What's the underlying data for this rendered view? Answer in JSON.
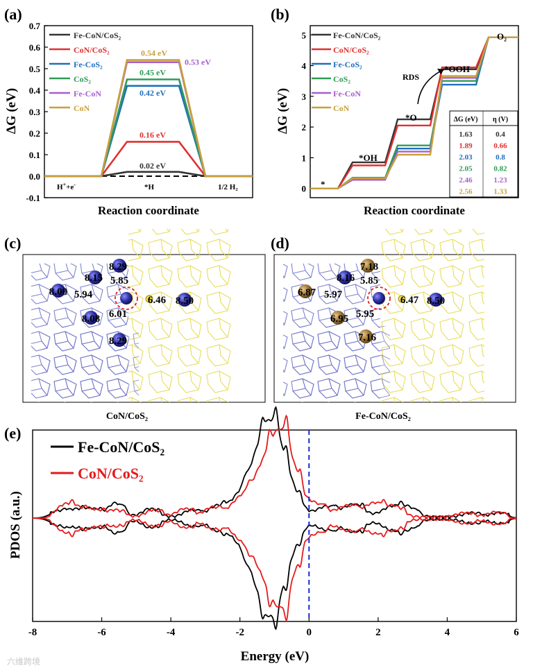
{
  "chart_data": [
    {
      "panel": "(a)",
      "type": "line",
      "title": "",
      "ylabel": "ΔG (eV)",
      "xlabel": "Reaction coordinate",
      "ylim": [
        -0.1,
        0.7
      ],
      "yticks": [
        "-0.1",
        "0.0",
        "0.1",
        "0.2",
        "0.3",
        "0.4",
        "0.5",
        "0.6",
        "0.7"
      ],
      "states": [
        "H⁺+e⁻",
        "*H",
        "1/2 H₂"
      ],
      "legend": [
        "Fe-CoN/CoS₂",
        "CoN/CoS₂",
        "Fe-CoS₂",
        "CoS₂",
        "Fe-CoN",
        "CoN"
      ],
      "series": [
        {
          "name": "Fe-CoN/CoS₂",
          "color": "#333333",
          "values": [
            0,
            0.02,
            0
          ],
          "label": "0.02 eV"
        },
        {
          "name": "CoN/CoS₂",
          "color": "#e03030",
          "values": [
            0,
            0.16,
            0
          ],
          "label": "0.16 eV"
        },
        {
          "name": "Fe-CoS₂",
          "color": "#1f6fbf",
          "values": [
            0,
            0.42,
            0
          ],
          "label": "0.42 eV"
        },
        {
          "name": "CoS₂",
          "color": "#2e9b57",
          "values": [
            0,
            0.45,
            0
          ],
          "label": "0.45 eV"
        },
        {
          "name": "Fe-CoN",
          "color": "#a65fd0",
          "values": [
            0,
            0.53,
            0
          ],
          "label": "0.53 eV"
        },
        {
          "name": "CoN",
          "color": "#c9a03a",
          "values": [
            0,
            0.54,
            0
          ],
          "label": "0.54 eV"
        }
      ]
    },
    {
      "panel": "(b)",
      "type": "line",
      "ylabel": "ΔG (eV)",
      "xlabel": "Reaction coordinate",
      "ylim": [
        -0.3,
        5.3
      ],
      "yticks": [
        "0",
        "1",
        "2",
        "3",
        "4",
        "5"
      ],
      "states": [
        "*",
        "*OH",
        "*O",
        "*OOH",
        "O₂"
      ],
      "rds_label": "RDS",
      "legend": [
        "Fe-CoN/CoS₂",
        "CoN/CoS₂",
        "Fe-CoS₂",
        "CoS₂",
        "Fe-CoN",
        "CoN"
      ],
      "series": [
        {
          "name": "Fe-CoN/CoS₂",
          "color": "#333333",
          "values": [
            0,
            0.85,
            2.25,
            3.88,
            4.92
          ]
        },
        {
          "name": "CoN/CoS₂",
          "color": "#e03030",
          "values": [
            0,
            0.75,
            2.05,
            3.94,
            4.92
          ]
        },
        {
          "name": "Fe-CoS₂",
          "color": "#1f6fbf",
          "values": [
            0,
            0.3,
            1.3,
            3.38,
            4.92
          ]
        },
        {
          "name": "CoS₂",
          "color": "#2e9b57",
          "values": [
            0,
            0.35,
            1.4,
            3.5,
            4.92
          ]
        },
        {
          "name": "Fe-CoN",
          "color": "#a65fd0",
          "values": [
            0,
            0.28,
            1.2,
            3.6,
            4.92
          ]
        },
        {
          "name": "CoN",
          "color": "#c9a03a",
          "values": [
            0,
            0.33,
            1.1,
            3.66,
            4.92
          ]
        }
      ],
      "table": {
        "headers": [
          "ΔG (eV)",
          "η (V)"
        ],
        "rows": [
          [
            "1.63",
            "0.4"
          ],
          [
            "1.89",
            "0.66"
          ],
          [
            "2.03",
            "0.8"
          ],
          [
            "2.05",
            "0.82"
          ],
          [
            "2.46",
            "1.23"
          ],
          [
            "2.56",
            "1.33"
          ]
        ]
      }
    },
    {
      "panel": "(e)",
      "type": "line",
      "ylabel": "PDOS (a.u.)",
      "xlabel": "Energy (eV)",
      "xlim": [
        -8,
        6
      ],
      "xticks": [
        "-8",
        "-6",
        "-4",
        "-2",
        "0",
        "2",
        "4",
        "6"
      ],
      "fermi_level": 0,
      "legend": [
        "Fe-CoN/CoS₂",
        "CoN/CoS₂"
      ],
      "series": [
        {
          "name": "Fe-CoN/CoS₂",
          "color": "#000000",
          "peaks": [
            [
              -7.3,
              0.08
            ],
            [
              -6.8,
              0.1
            ],
            [
              -6.3,
              0.12
            ],
            [
              -5.6,
              0.2
            ],
            [
              -4.6,
              0.12
            ],
            [
              -3.4,
              0.1
            ],
            [
              -2.7,
              0.14
            ],
            [
              -2.1,
              0.22
            ],
            [
              -1.6,
              0.5
            ],
            [
              -1.2,
              0.85
            ],
            [
              -0.9,
              0.6
            ],
            [
              -0.5,
              0.3
            ],
            [
              0.5,
              0.15
            ],
            [
              1.3,
              0.18
            ],
            [
              2.4,
              0.15
            ],
            [
              2.9,
              0.12
            ],
            [
              4.7,
              0.06
            ],
            [
              5.5,
              0.06
            ]
          ]
        },
        {
          "name": "CoN/CoS₂",
          "color": "#e41a1c",
          "peaks": [
            [
              -7.1,
              0.16
            ],
            [
              -6.7,
              0.12
            ],
            [
              -6.2,
              0.1
            ],
            [
              -5.6,
              0.1
            ],
            [
              -4.5,
              0.1
            ],
            [
              -3.6,
              0.12
            ],
            [
              -2.8,
              0.14
            ],
            [
              -2.0,
              0.25
            ],
            [
              -1.4,
              0.55
            ],
            [
              -0.9,
              0.95
            ],
            [
              -0.5,
              0.55
            ],
            [
              0.2,
              0.18
            ],
            [
              1.1,
              0.16
            ],
            [
              1.9,
              0.2
            ],
            [
              2.5,
              0.14
            ],
            [
              4.5,
              0.06
            ],
            [
              5.4,
              0.07
            ]
          ]
        }
      ]
    }
  ],
  "structures": {
    "c": {
      "label": "(c)",
      "caption": "CoN/CoS₂",
      "atoms": [
        "8.29",
        "8.15",
        "8.00",
        "8.08",
        "8.29",
        "8.50"
      ],
      "bonds": [
        "5.85",
        "5.94",
        "6.01",
        "6.46"
      ]
    },
    "d": {
      "label": "(d)",
      "caption": "Fe-CoN/CoS₂",
      "atoms": [
        "7.18",
        "8.16",
        "6.87",
        "6.95",
        "7.16",
        "8.50"
      ],
      "bonds": [
        "5.85",
        "5.97",
        "5.95",
        "6.47"
      ]
    }
  },
  "watermark": "六维跨境",
  "colors": {
    "blue_atom": "#2b2e9e",
    "brown_atom": "#9a7434",
    "highlight": "#e02020",
    "fermi": "#1a2bd6"
  }
}
